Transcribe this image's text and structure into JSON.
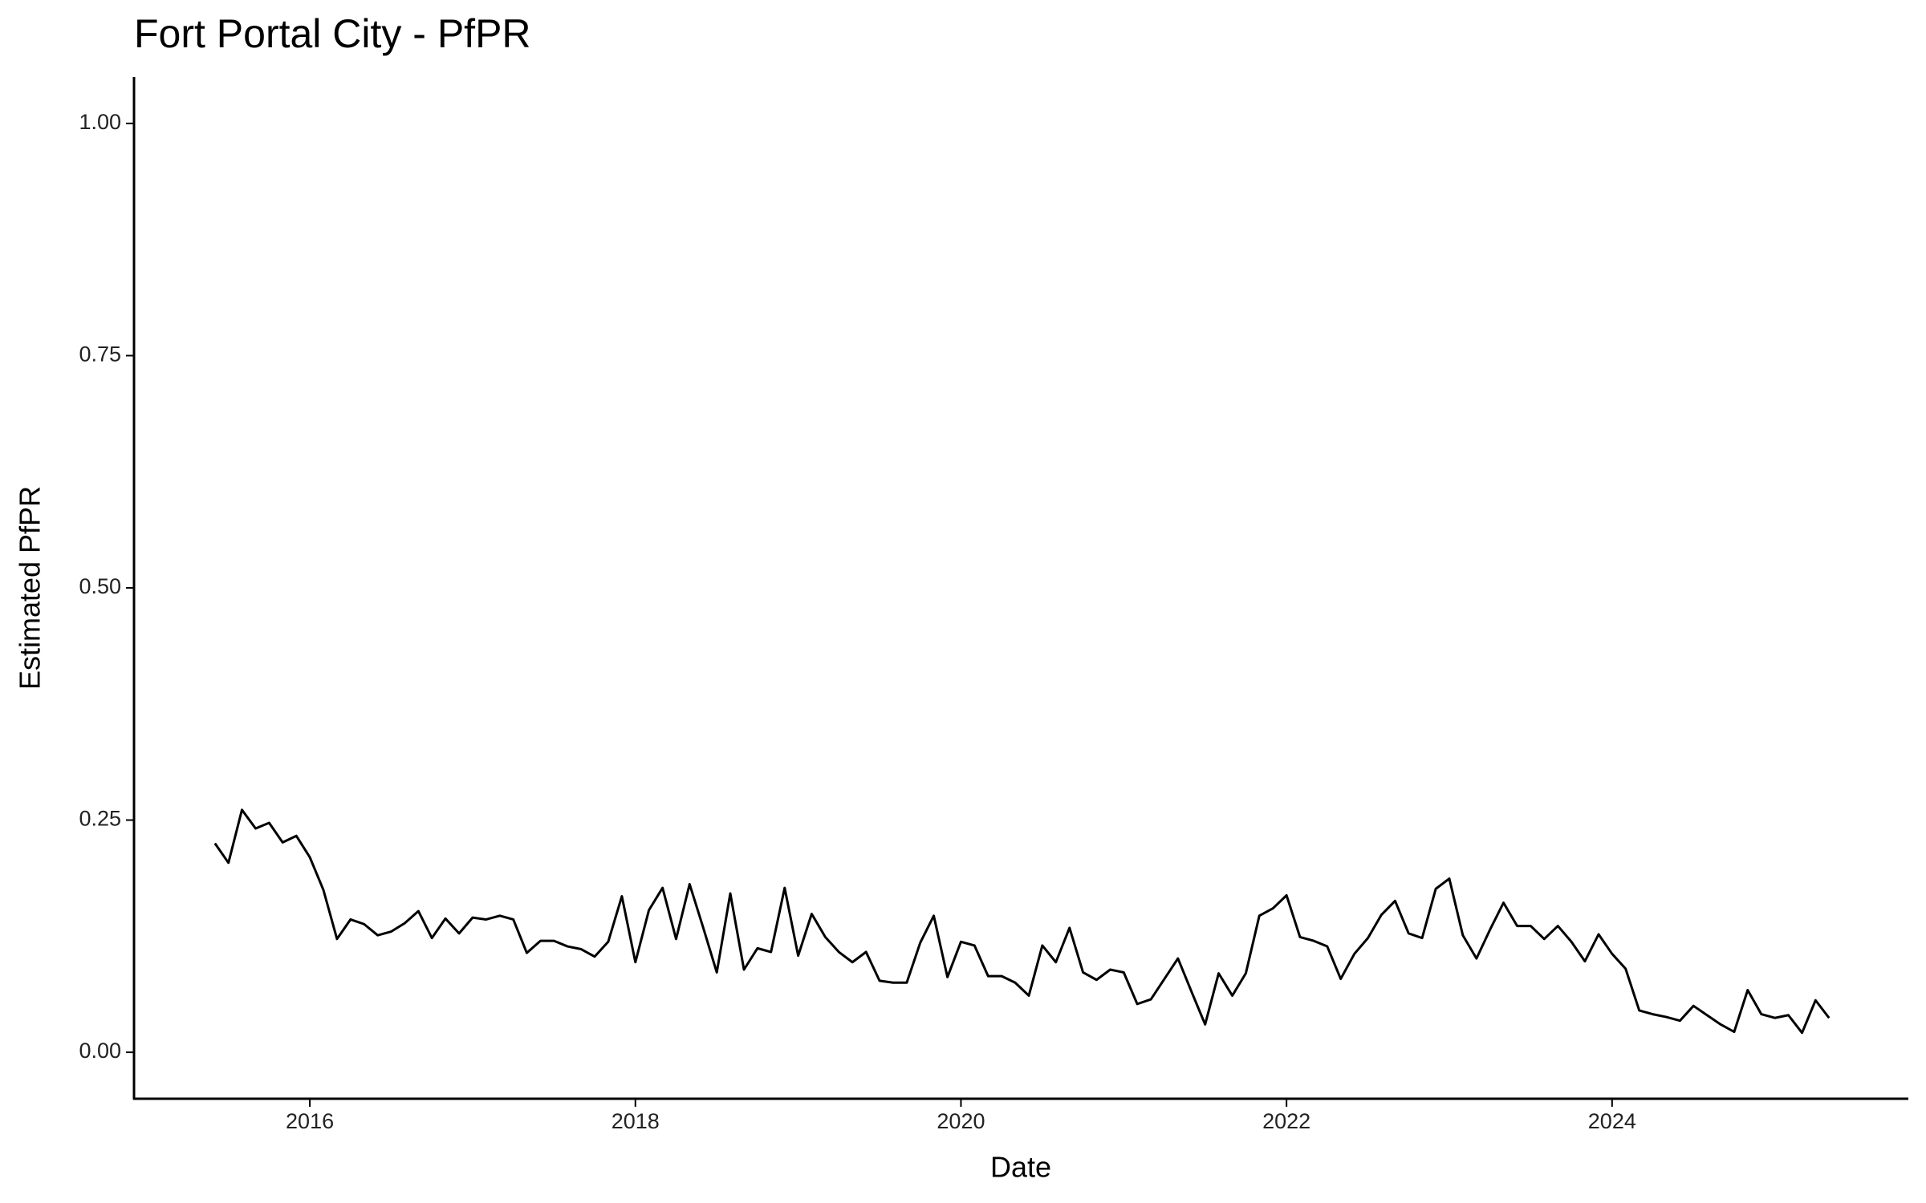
{
  "chart_data": {
    "type": "line",
    "title": "Fort Portal City - PfPR",
    "x_label": "Date",
    "y_label": "Estimated PfPR",
    "x": [
      2015.417,
      2015.5,
      2015.583,
      2015.667,
      2015.75,
      2015.833,
      2015.917,
      2016,
      2016.083,
      2016.167,
      2016.25,
      2016.333,
      2016.417,
      2016.5,
      2016.583,
      2016.667,
      2016.75,
      2016.833,
      2016.917,
      2017,
      2017.083,
      2017.167,
      2017.25,
      2017.333,
      2017.417,
      2017.5,
      2017.583,
      2017.667,
      2017.75,
      2017.833,
      2017.917,
      2018,
      2018.083,
      2018.167,
      2018.25,
      2018.333,
      2018.417,
      2018.5,
      2018.583,
      2018.667,
      2018.75,
      2018.833,
      2018.917,
      2019,
      2019.083,
      2019.167,
      2019.25,
      2019.333,
      2019.417,
      2019.5,
      2019.583,
      2019.667,
      2019.75,
      2019.833,
      2019.917,
      2020,
      2020.083,
      2020.167,
      2020.25,
      2020.333,
      2020.417,
      2020.5,
      2020.583,
      2020.667,
      2020.75,
      2020.833,
      2020.917,
      2021,
      2021.083,
      2021.167,
      2021.25,
      2021.333,
      2021.417,
      2021.5,
      2021.583,
      2021.667,
      2021.75,
      2021.833,
      2021.917,
      2022,
      2022.083,
      2022.167,
      2022.25,
      2022.333,
      2022.417,
      2022.5,
      2022.583,
      2022.667,
      2022.75,
      2022.833,
      2022.917,
      2023,
      2023.083,
      2023.167,
      2023.25,
      2023.333,
      2023.417,
      2023.5,
      2023.583,
      2023.667,
      2023.75,
      2023.833,
      2023.917,
      2024,
      2024.083,
      2024.167,
      2024.25,
      2024.333,
      2024.417,
      2024.5,
      2024.583,
      2024.667,
      2024.75,
      2024.833,
      2024.917,
      2025,
      2025.083,
      2025.167,
      2025.25,
      2025.333
    ],
    "series": [
      {
        "color": "#000000",
        "values": [
          0.225,
          0.204,
          0.261,
          0.241,
          0.247,
          0.226,
          0.233,
          0.21,
          0.175,
          0.122,
          0.143,
          0.138,
          0.126,
          0.13,
          0.139,
          0.152,
          0.123,
          0.144,
          0.128,
          0.145,
          0.143,
          0.147,
          0.143,
          0.107,
          0.12,
          0.12,
          0.114,
          0.111,
          0.103,
          0.119,
          0.168,
          0.097,
          0.153,
          0.177,
          0.122,
          0.181,
          0.134,
          0.086,
          0.171,
          0.089,
          0.112,
          0.108,
          0.177,
          0.104,
          0.149,
          0.124,
          0.108,
          0.097,
          0.108,
          0.077,
          0.075,
          0.075,
          0.118,
          0.147,
          0.081,
          0.119,
          0.115,
          0.082,
          0.082,
          0.075,
          0.061,
          0.115,
          0.097,
          0.134,
          0.086,
          0.078,
          0.089,
          0.086,
          0.052,
          0.057,
          0.079,
          0.101,
          0.065,
          0.03,
          0.085,
          0.061,
          0.085,
          0.147,
          0.155,
          0.169,
          0.124,
          0.12,
          0.114,
          0.079,
          0.106,
          0.123,
          0.148,
          0.163,
          0.128,
          0.123,
          0.176,
          0.187,
          0.126,
          0.101,
          0.132,
          0.161,
          0.136,
          0.136,
          0.122,
          0.136,
          0.119,
          0.098,
          0.127,
          0.106,
          0.09,
          0.045,
          0.041,
          0.038,
          0.034,
          0.05,
          0.04,
          0.03,
          0.022,
          0.067,
          0.041,
          0.037,
          0.04,
          0.021,
          0.056,
          0.037
        ]
      }
    ],
    "xlim": [
      2014.92,
      2025.82
    ],
    "xticks": [
      2016,
      2018,
      2020,
      2022,
      2024
    ],
    "ylim": [
      -0.05,
      1.05
    ],
    "yticks": [
      {
        "value": 0,
        "label": "0.00"
      },
      {
        "value": 0.25,
        "label": "0.25"
      },
      {
        "value": 0.5,
        "label": "0.50"
      },
      {
        "value": 0.75,
        "label": "0.75"
      },
      {
        "value": 1,
        "label": "1.00"
      }
    ],
    "grid": false
  }
}
